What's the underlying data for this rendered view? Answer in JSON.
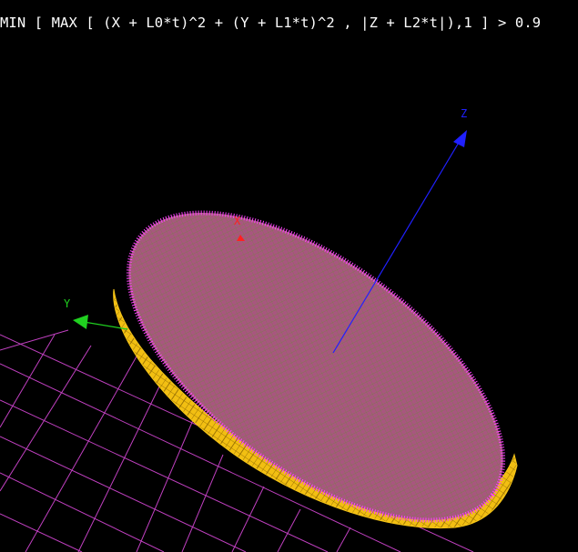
{
  "formula": "MIN [ MAX [ (X + L0*t)^2 + (Y + L1*t)^2 , |Z + L2*t|),1 ] > 0.9",
  "axes": {
    "x": {
      "label": "X",
      "color": "#ff2020"
    },
    "y": {
      "label": "Y",
      "color": "#20d020"
    },
    "z": {
      "label": "Z",
      "color": "#2020ff"
    }
  },
  "colors": {
    "background": "#000000",
    "grid": "#c040c0",
    "disk_top": "#b05a8a",
    "disk_rim": "#ff44ff",
    "disk_side": "#f5c518"
  }
}
